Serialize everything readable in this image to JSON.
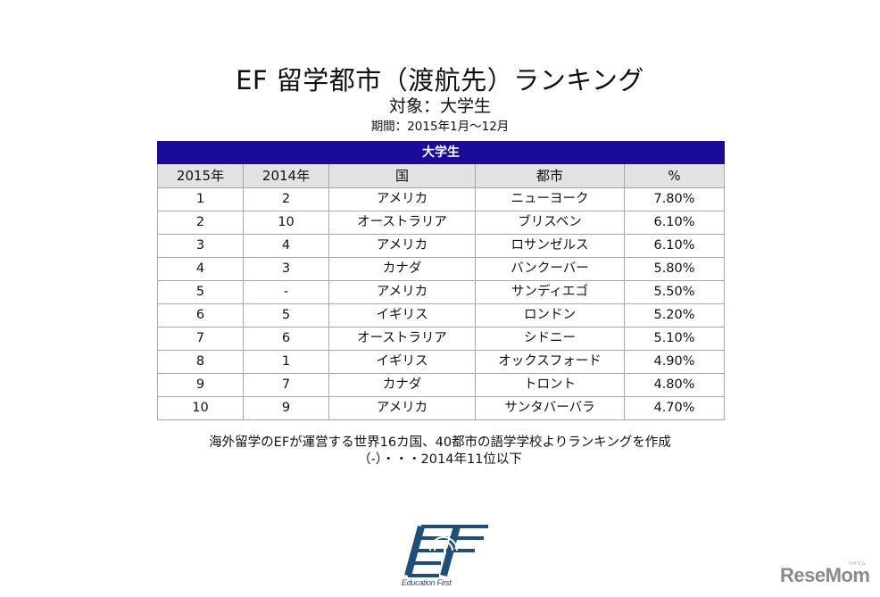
{
  "header": {
    "title": "EF 留学都市（渡航先）ランキング",
    "subtitle": "対象：大学生",
    "period": "期間：2015年1月〜12月"
  },
  "table": {
    "band_label": "大学生",
    "band_color": "#1a0c99",
    "columns": [
      "2015年",
      "2014年",
      "国",
      "都市",
      "%"
    ],
    "rows": [
      [
        "1",
        "2",
        "アメリカ",
        "ニューヨーク",
        "7.80%"
      ],
      [
        "2",
        "10",
        "オーストラリア",
        "ブリスベン",
        "6.10%"
      ],
      [
        "3",
        "4",
        "アメリカ",
        "ロサンゼルス",
        "6.10%"
      ],
      [
        "4",
        "3",
        "カナダ",
        "バンクーバー",
        "5.80%"
      ],
      [
        "5",
        "-",
        "アメリカ",
        "サンディエゴ",
        "5.50%"
      ],
      [
        "6",
        "5",
        "イギリス",
        "ロンドン",
        "5.20%"
      ],
      [
        "7",
        "6",
        "オーストラリア",
        "シドニー",
        "5.10%"
      ],
      [
        "8",
        "1",
        "イギリス",
        "オックスフォード",
        "4.90%"
      ],
      [
        "9",
        "7",
        "カナダ",
        "トロント",
        "4.80%"
      ],
      [
        "10",
        "9",
        "アメリカ",
        "サンタバーバラ",
        "4.70%"
      ]
    ]
  },
  "notes": {
    "line1": "海外留学のEFが運営する世界16カ国、40都市の語学学校よりランキングを作成",
    "line2": "（-）・・・2014年11位以下"
  },
  "logo": {
    "name": "ef-logo",
    "caption": "Education First",
    "color": "#1f4e79"
  },
  "watermark": {
    "text": "ReseMom",
    "kana": "リセマム"
  }
}
